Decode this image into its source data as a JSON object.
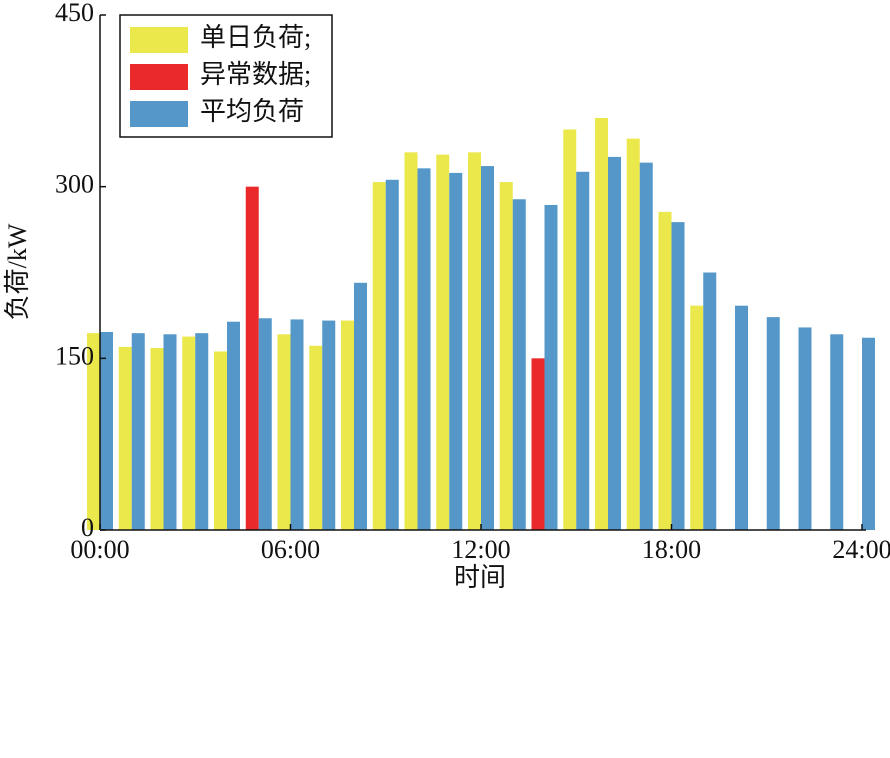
{
  "chart_data": {
    "type": "bar",
    "x": [
      0,
      1,
      2,
      3,
      4,
      5,
      6,
      7,
      8,
      9,
      10,
      11,
      12,
      13,
      14,
      15,
      16,
      17,
      18,
      19,
      20,
      21,
      22,
      23,
      24
    ],
    "series": [
      {
        "name": "单日负荷;",
        "color": "#ebe84b",
        "values": [
          172,
          160,
          159,
          169,
          156,
          null,
          171,
          161,
          183,
          304,
          330,
          328,
          330,
          304,
          null,
          350,
          360,
          342,
          278,
          196,
          null,
          null,
          null,
          null,
          null
        ]
      },
      {
        "name": "异常数据;",
        "color": "#ea2a2a",
        "values": [
          null,
          null,
          null,
          null,
          null,
          300,
          null,
          null,
          null,
          null,
          null,
          null,
          null,
          null,
          150,
          null,
          null,
          null,
          null,
          null,
          null,
          null,
          null,
          null,
          null
        ]
      },
      {
        "name": "平均负荷",
        "color": "#5497c8",
        "values": [
          173,
          172,
          171,
          172,
          182,
          185,
          184,
          183,
          216,
          306,
          316,
          312,
          318,
          289,
          284,
          313,
          326,
          321,
          269,
          225,
          196,
          186,
          177,
          171,
          168
        ]
      }
    ],
    "xlim": [
      0,
      24
    ],
    "xticks": [
      {
        "value": 0,
        "label": "00:00"
      },
      {
        "value": 6,
        "label": "06:00"
      },
      {
        "value": 12,
        "label": "12:00"
      },
      {
        "value": 18,
        "label": "18:00"
      },
      {
        "value": 24,
        "label": "24:00"
      }
    ],
    "ylim": [
      0,
      450
    ],
    "yticks": [
      0,
      150,
      300,
      450
    ],
    "xlabel": "时间",
    "ylabel": "负荷/kW",
    "legend": "upper left"
  }
}
